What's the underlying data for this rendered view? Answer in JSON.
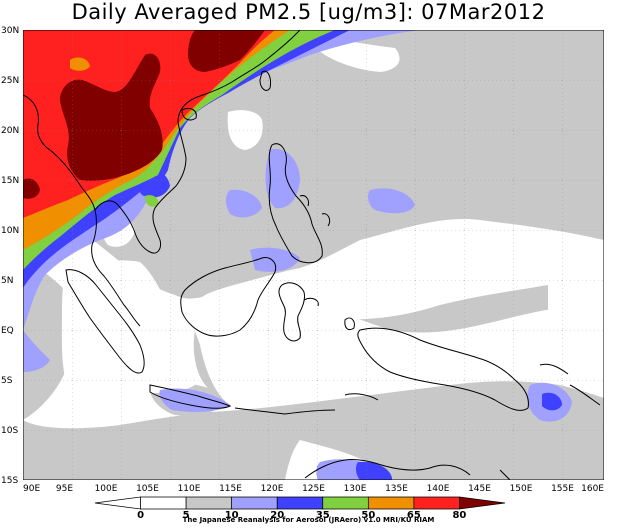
{
  "title": "Daily Averaged PM2.5 [ug/m3]: 07Mar2012",
  "credit": "The Japanese Reanalysis for Aerosol (JRAero) v1.0 MRI/KU RIAM",
  "lat_labels": [
    "30N",
    "25N",
    "20N",
    "15N",
    "10N",
    "5N",
    "EQ",
    "5S",
    "10S",
    "15S"
  ],
  "lon_labels": [
    "90E",
    "95E",
    "100E",
    "105E",
    "110E",
    "115E",
    "120E",
    "125E",
    "130E",
    "135E",
    "140E",
    "145E",
    "150E",
    "155E",
    "160E"
  ],
  "colorbar": {
    "levels": [
      "0",
      "5",
      "10",
      "20",
      "35",
      "50",
      "65",
      "80"
    ],
    "colors": [
      "#ffffff",
      "#ffffff",
      "#c8c8c8",
      "#a0a0ff",
      "#4040ff",
      "#80d040",
      "#f09000",
      "#ff2020",
      "#800000"
    ]
  },
  "palette": {
    "gray": "#c8c8c8",
    "light_blue": "#a0a0ff",
    "blue": "#4040ff",
    "green": "#80d040",
    "orange": "#f09000",
    "red": "#ff2020",
    "dark_red": "#800000"
  }
}
